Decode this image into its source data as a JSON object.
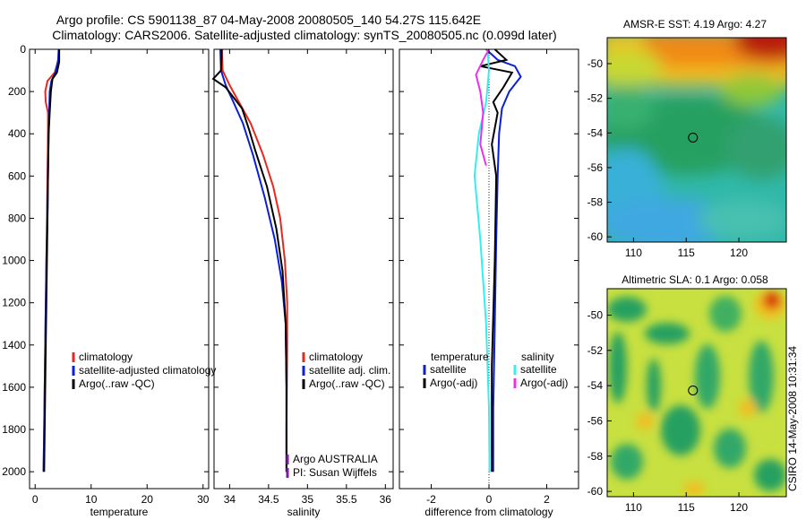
{
  "header": {
    "title_line1": "Argo profile: CS 5901138_87 04-May-2008 20080505_140 54.27S 115.642E",
    "title_line2": "Climatology: CARS2006. Satellite-adjusted climatology: synTS_20080505.nc (0.099d later)"
  },
  "side_text": "CSIRO 14-May-2008 10:31:34",
  "colors": {
    "climatology": "#e8271e",
    "satellite": "#0d1fd6",
    "argo": "#000000",
    "salinity_satellite": "#33f0f0",
    "salinity_argo": "#e832e8",
    "pi_marker": "#7a1fa0"
  },
  "legends": {
    "temperature": [
      "climatology",
      "satellite-adjusted climatology",
      "Argo(..raw -QC)"
    ],
    "salinity": [
      "climatology",
      "satellite adj. clim.",
      "Argo(..raw -QC)"
    ],
    "diff_temp_header": "temperature",
    "diff_sal_header": "salinity",
    "diff_temp": [
      "satellite",
      "Argo(-adj)"
    ],
    "diff_sal": [
      "satellite",
      "Argo(-adj)"
    ],
    "pi_lines": [
      "Argo AUSTRALIA",
      "PI: Susan Wijffels"
    ]
  },
  "chart_data": [
    {
      "type": "line",
      "xlabel": "temperature",
      "xlim": [
        -1,
        31
      ],
      "xticks": [
        0,
        10,
        20,
        30
      ],
      "ylim": [
        2080,
        0
      ],
      "yticks": [
        0,
        200,
        400,
        600,
        800,
        1000,
        1200,
        1400,
        1600,
        1800,
        2000
      ],
      "series": [
        {
          "name": "climatology",
          "x": [
            4.3,
            4.2,
            3.5,
            2.2,
            1.8,
            1.9,
            2.3,
            2.3,
            2.2,
            2.1,
            2.0,
            1.8,
            1.6,
            1.5
          ],
          "y": [
            0,
            50,
            110,
            150,
            200,
            250,
            300,
            400,
            600,
            800,
            1000,
            1400,
            1800,
            2000
          ]
        },
        {
          "name": "satellite-adjusted climatology",
          "x": [
            4.2,
            4.1,
            3.6,
            2.9,
            2.6,
            2.5,
            2.4,
            2.3,
            2.2,
            2.0,
            1.8,
            1.6,
            1.5
          ],
          "y": [
            0,
            50,
            110,
            150,
            200,
            300,
            400,
            600,
            800,
            1000,
            1400,
            1800,
            2000
          ]
        },
        {
          "name": "Argo(..raw -QC)",
          "x": [
            4.3,
            4.3,
            3.9,
            3.1,
            2.8,
            2.6,
            2.4,
            2.3,
            2.1,
            1.9,
            1.7,
            1.6
          ],
          "y": [
            0,
            60,
            110,
            140,
            200,
            300,
            400,
            600,
            1000,
            1400,
            1800,
            2000
          ]
        }
      ]
    },
    {
      "type": "line",
      "xlabel": "salinity",
      "xlim": [
        33.8,
        36.1
      ],
      "xticks": [
        34,
        34.5,
        35,
        35.5,
        36
      ],
      "xtick_labels": [
        "34",
        "34.5",
        "35",
        "35.5",
        "36"
      ],
      "ylim": [
        2080,
        0
      ],
      "series": [
        {
          "name": "climatology",
          "x": [
            33.9,
            33.91,
            34.0,
            34.12,
            34.27,
            34.43,
            34.56,
            34.65,
            34.71,
            34.74,
            34.74,
            34.73,
            34.73
          ],
          "y": [
            0,
            100,
            170,
            250,
            350,
            500,
            650,
            800,
            1000,
            1200,
            1400,
            1800,
            2000
          ]
        },
        {
          "name": "satellite adj. clim.",
          "x": [
            33.88,
            33.89,
            33.95,
            34.05,
            34.17,
            34.3,
            34.45,
            34.58,
            34.67,
            34.72,
            34.73,
            34.73
          ],
          "y": [
            0,
            100,
            170,
            250,
            350,
            500,
            700,
            900,
            1100,
            1300,
            1600,
            2000
          ]
        },
        {
          "name": "Argo(..raw -QC)",
          "x": [
            33.9,
            33.89,
            33.79,
            33.95,
            34.16,
            34.25,
            34.33,
            34.48,
            34.6,
            34.68,
            34.72,
            34.73,
            34.73
          ],
          "y": [
            0,
            100,
            140,
            180,
            280,
            380,
            480,
            650,
            850,
            1050,
            1300,
            1600,
            2000
          ]
        }
      ]
    },
    {
      "type": "line",
      "xlabel": "difference from climatology",
      "xlim": [
        -3.1,
        3.1
      ],
      "xticks": [
        -2,
        0,
        2
      ],
      "ylim": [
        2080,
        0
      ],
      "series": [
        {
          "name": "temperature satellite",
          "x": [
            -0.1,
            0.3,
            0.9,
            1.1,
            0.7,
            0.45,
            0.35,
            0.3,
            0.25,
            0.2,
            0.15,
            0.15
          ],
          "y": [
            0,
            50,
            80,
            130,
            200,
            280,
            400,
            600,
            900,
            1300,
            1700,
            2000
          ]
        },
        {
          "name": "temperature Argo(-adj)",
          "x": [
            0.2,
            0.6,
            -0.3,
            0.8,
            0.5,
            0.15,
            0.3,
            0.1,
            0.25,
            0.2,
            0.1,
            0.1
          ],
          "y": [
            0,
            50,
            80,
            110,
            180,
            250,
            300,
            450,
            600,
            1000,
            1500,
            2000
          ]
        },
        {
          "name": "salinity satellite",
          "x": [
            -0.05,
            0.0,
            -0.1,
            -0.35,
            -0.5,
            -0.3,
            -0.1,
            0.0,
            0.02
          ],
          "y": [
            0,
            100,
            250,
            400,
            600,
            900,
            1300,
            1700,
            2000
          ]
        },
        {
          "name": "salinity Argo(-adj)",
          "x": [
            0.0,
            -0.2,
            -0.45,
            -0.3,
            -0.2,
            -0.3,
            -0.1
          ],
          "y": [
            0,
            50,
            120,
            200,
            300,
            450,
            550
          ]
        }
      ]
    },
    {
      "type": "heatmap",
      "title": "AMSR-E SST: 4.19 Argo: 4.27",
      "xlim": [
        107.5,
        124.5
      ],
      "ylim": [
        -60.3,
        -48.5
      ],
      "xticks": [
        110,
        115,
        120
      ],
      "yticks": [
        -60,
        -58,
        -56,
        -54,
        -52,
        -50
      ],
      "marker": {
        "lon": 115.642,
        "lat": -54.27
      }
    },
    {
      "type": "heatmap",
      "title": "Altimetric SLA: 0.1 Argo: 0.058",
      "xlim": [
        107.5,
        124.5
      ],
      "ylim": [
        -60.3,
        -48.5
      ],
      "xticks": [
        110,
        115,
        120
      ],
      "yticks": [
        -60,
        -58,
        -56,
        -54,
        -52,
        -50
      ],
      "marker": {
        "lon": 115.642,
        "lat": -54.27
      }
    }
  ]
}
